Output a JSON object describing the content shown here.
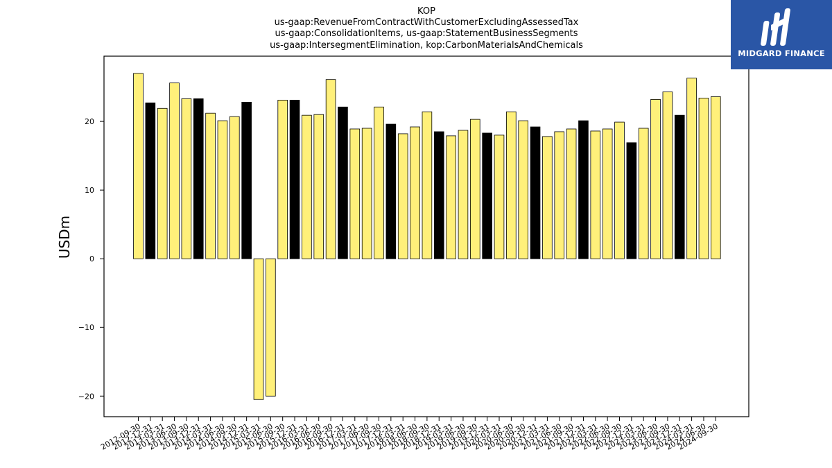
{
  "brand": {
    "name": "MIDGARD FINANCE",
    "background": "#2a56a6"
  },
  "chart_data": {
    "type": "bar",
    "title_lines": [
      "KOP",
      "us-gaap:RevenueFromContractWithCustomerExcludingAssessedTax",
      "us-gaap:ConsolidationItems, us-gaap:StatementBusinessSegments",
      "us-gaap:IntersegmentElimination, kop:CarbonMaterialsAndChemicals"
    ],
    "xlabel": "",
    "ylabel": "USDm",
    "ylim": [
      -23,
      29.5
    ],
    "yticks": [
      -20,
      -10,
      0,
      10,
      20
    ],
    "grid": false,
    "colors": {
      "quarter": "#fff07a",
      "fiscal_year_end": "#000000",
      "edge": "#000000"
    },
    "categories": [
      "2012-09-30",
      "2012-12-31",
      "2013-03-31",
      "2013-06-30",
      "2013-09-30",
      "2013-12-31",
      "2014-03-31",
      "2014-06-30",
      "2014-09-30",
      "2014-12-31",
      "2015-03-31",
      "2015-06-30",
      "2015-09-30",
      "2015-12-31",
      "2016-03-31",
      "2016-06-30",
      "2016-09-30",
      "2016-12-31",
      "2017-03-31",
      "2017-06-30",
      "2017-09-30",
      "2017-12-31",
      "2018-03-31",
      "2018-06-30",
      "2018-09-30",
      "2018-12-31",
      "2019-03-31",
      "2019-06-30",
      "2019-09-30",
      "2019-12-31",
      "2020-03-31",
      "2020-06-30",
      "2020-09-30",
      "2020-12-31",
      "2021-03-31",
      "2021-06-30",
      "2021-09-30",
      "2021-12-31",
      "2022-03-31",
      "2022-06-30",
      "2022-09-30",
      "2022-12-31",
      "2023-03-31",
      "2023-06-30",
      "2023-09-30",
      "2023-12-31",
      "2024-03-31",
      "2024-06-30",
      "2024-09-30"
    ],
    "values": [
      27.0,
      22.7,
      21.9,
      25.6,
      23.3,
      23.3,
      21.2,
      20.1,
      20.7,
      22.8,
      -20.5,
      -20.0,
      23.1,
      23.1,
      20.9,
      21.0,
      26.1,
      22.1,
      18.9,
      19.0,
      22.1,
      19.6,
      18.2,
      19.2,
      21.4,
      18.5,
      17.9,
      18.7,
      20.3,
      18.3,
      18.0,
      21.4,
      20.1,
      19.2,
      17.8,
      18.5,
      18.9,
      20.1,
      18.6,
      18.9,
      19.9,
      16.9,
      19.0,
      23.2,
      24.3,
      20.9,
      26.3,
      23.4,
      23.6
    ]
  }
}
